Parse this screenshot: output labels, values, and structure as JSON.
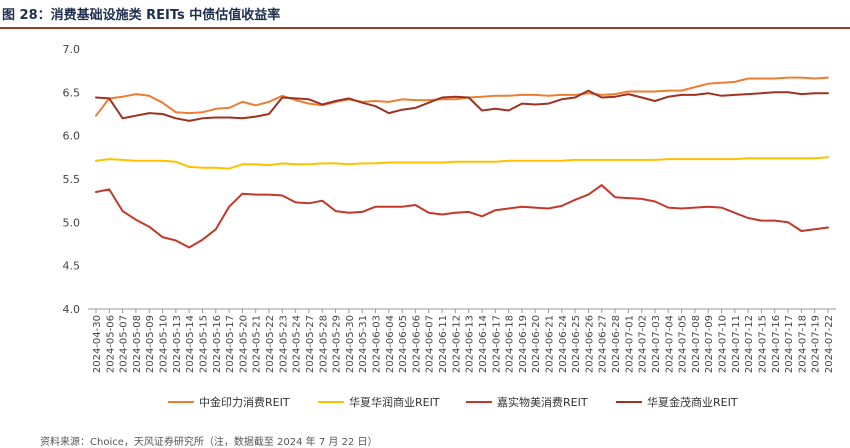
{
  "header": {
    "title": "图 28：消费基础设施类 REITs 中债估值收益率"
  },
  "footer": {
    "source": "资料来源：Choice，天风证券研究所（注，数据截至 2024 年 7 月 22 日）"
  },
  "chart_data": {
    "type": "line",
    "title": "图 28：消费基础设施类 REITs 中债估值收益率",
    "xlabel": "",
    "ylabel": "",
    "ylim": [
      4.0,
      7.0
    ],
    "yticks": [
      "4.0",
      "4.5",
      "5.0",
      "5.5",
      "6.0",
      "6.5",
      "7.0"
    ],
    "grid": false,
    "legend": "bottom",
    "x": [
      "2024-04-30",
      "2024-05-06",
      "2024-05-07",
      "2024-05-08",
      "2024-05-09",
      "2024-05-10",
      "2024-05-13",
      "2024-05-14",
      "2024-05-15",
      "2024-05-16",
      "2024-05-17",
      "2024-05-20",
      "2024-05-21",
      "2024-05-22",
      "2024-05-23",
      "2024-05-24",
      "2024-05-27",
      "2024-05-28",
      "2024-05-29",
      "2024-05-30",
      "2024-05-31",
      "2024-06-03",
      "2024-06-04",
      "2024-06-05",
      "2024-06-06",
      "2024-06-07",
      "2024-06-11",
      "2024-06-12",
      "2024-06-13",
      "2024-06-14",
      "2024-06-17",
      "2024-06-18",
      "2024-06-19",
      "2024-06-20",
      "2024-06-21",
      "2024-06-24",
      "2024-06-25",
      "2024-06-26",
      "2024-06-27",
      "2024-06-28",
      "2024-07-01",
      "2024-07-02",
      "2024-07-03",
      "2024-07-04",
      "2024-07-05",
      "2024-07-08",
      "2024-07-09",
      "2024-07-10",
      "2024-07-11",
      "2024-07-12",
      "2024-07-15",
      "2024-07-16",
      "2024-07-17",
      "2024-07-18",
      "2024-07-19",
      "2024-07-22"
    ],
    "series": [
      {
        "name": "中金印力消费REIT",
        "color": "#ed7d31",
        "values": [
          6.23,
          6.43,
          6.45,
          6.48,
          6.46,
          6.38,
          6.27,
          6.26,
          6.27,
          6.31,
          6.32,
          6.39,
          6.35,
          6.39,
          6.46,
          6.41,
          6.37,
          6.35,
          6.39,
          6.42,
          6.39,
          6.4,
          6.39,
          6.42,
          6.41,
          6.41,
          6.42,
          6.42,
          6.44,
          6.45,
          6.46,
          6.46,
          6.47,
          6.47,
          6.46,
          6.47,
          6.47,
          6.49,
          6.47,
          6.48,
          6.51,
          6.51,
          6.51,
          6.52,
          6.52,
          6.56,
          6.6,
          6.61,
          6.62,
          6.66,
          6.66,
          6.66,
          6.67,
          6.67,
          6.66,
          6.67
        ]
      },
      {
        "name": "华夏华润商业REIT",
        "color": "#ffc000",
        "values": [
          5.71,
          5.73,
          5.72,
          5.71,
          5.71,
          5.71,
          5.7,
          5.64,
          5.63,
          5.63,
          5.62,
          5.67,
          5.67,
          5.66,
          5.68,
          5.67,
          5.67,
          5.68,
          5.68,
          5.67,
          5.68,
          5.68,
          5.69,
          5.69,
          5.69,
          5.69,
          5.69,
          5.7,
          5.7,
          5.7,
          5.7,
          5.71,
          5.71,
          5.71,
          5.71,
          5.71,
          5.72,
          5.72,
          5.72,
          5.72,
          5.72,
          5.72,
          5.72,
          5.73,
          5.73,
          5.73,
          5.73,
          5.73,
          5.73,
          5.74,
          5.74,
          5.74,
          5.74,
          5.74,
          5.74,
          5.75
        ]
      },
      {
        "name": "嘉实物美消费REIT",
        "color": "#c0392b",
        "values": [
          5.35,
          5.38,
          5.13,
          5.03,
          4.95,
          4.83,
          4.79,
          4.71,
          4.8,
          4.92,
          5.18,
          5.33,
          5.32,
          5.32,
          5.31,
          5.23,
          5.22,
          5.25,
          5.13,
          5.11,
          5.12,
          5.18,
          5.18,
          5.18,
          5.2,
          5.11,
          5.09,
          5.11,
          5.12,
          5.07,
          5.14,
          5.16,
          5.18,
          5.17,
          5.16,
          5.19,
          5.26,
          5.32,
          5.43,
          5.29,
          5.28,
          5.27,
          5.24,
          5.17,
          5.16,
          5.17,
          5.18,
          5.17,
          5.11,
          5.05,
          5.02,
          5.02,
          5.0,
          4.9,
          4.92,
          4.94
        ]
      },
      {
        "name": "华夏金茂商业REIT",
        "color": "#9e3222",
        "values": [
          6.44,
          6.43,
          6.2,
          6.23,
          6.26,
          6.25,
          6.2,
          6.17,
          6.2,
          6.21,
          6.21,
          6.2,
          6.22,
          6.25,
          6.44,
          6.43,
          6.42,
          6.36,
          6.4,
          6.43,
          6.38,
          6.34,
          6.26,
          6.3,
          6.32,
          6.38,
          6.44,
          6.45,
          6.44,
          6.29,
          6.31,
          6.29,
          6.37,
          6.36,
          6.37,
          6.42,
          6.44,
          6.52,
          6.44,
          6.45,
          6.48,
          6.44,
          6.4,
          6.45,
          6.47,
          6.47,
          6.49,
          6.46,
          6.47,
          6.48,
          6.49,
          6.5,
          6.5,
          6.48,
          6.49,
          6.49
        ]
      }
    ]
  }
}
